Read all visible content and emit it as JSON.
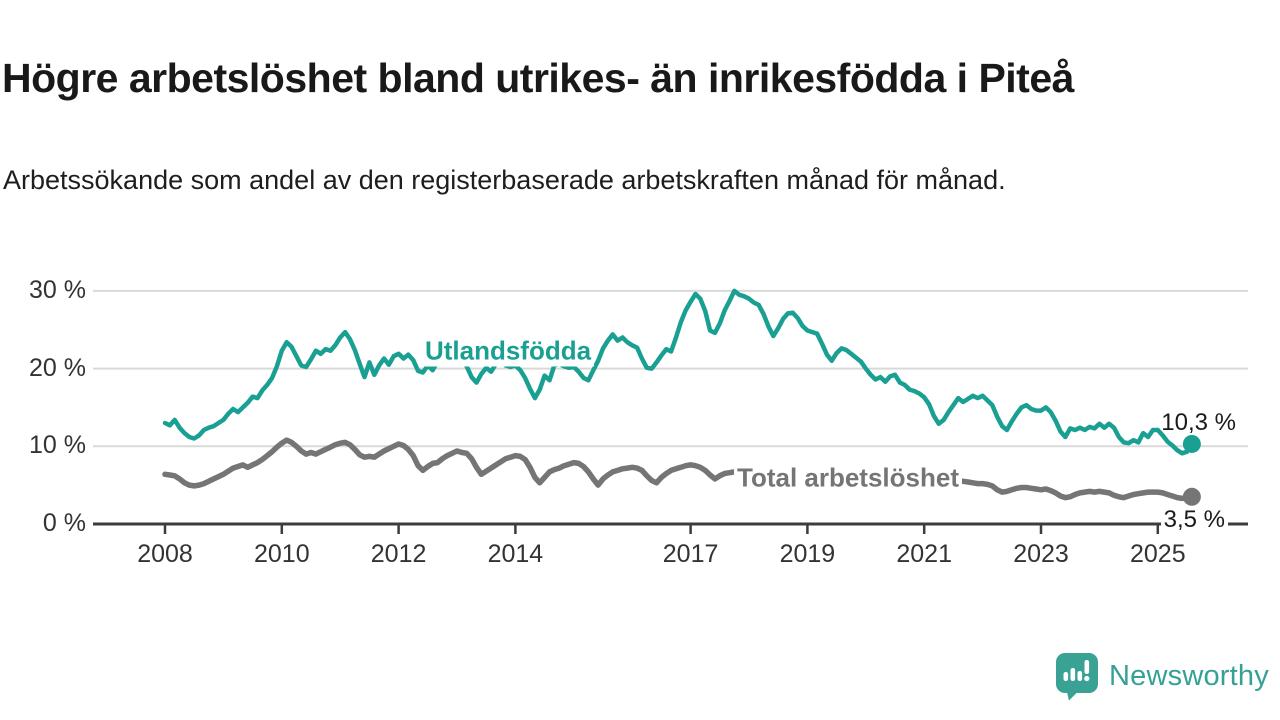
{
  "footer": {
    "brand": "Newsworthy",
    "icon": "newsworthy-speech-bubble-chart-icon"
  },
  "colors": {
    "accent_teal": "#1aa092",
    "series_gray": "#757575",
    "grid": "#d9d9d9",
    "axis": "#3c3c3c",
    "text": "#1a1a1a",
    "logo_teal": "#3aa195"
  },
  "chart_data": {
    "type": "line",
    "title": "Högre arbetslöshet bland utrikes- än inrikesfödda i Piteå",
    "subtitle": "Arbetssökande som andel av den registerbaserade arbetskraften månad för månad.",
    "x_unit": "month",
    "x_start": "2008-01",
    "x_end": "2025-08",
    "xlim": [
      2007.85,
      2026.1
    ],
    "ylim": [
      0,
      31.5
    ],
    "grid": "horizontal",
    "legend_position": "inline-labels",
    "x_ticks": [
      2008,
      2010,
      2012,
      2014,
      2017,
      2019,
      2021,
      2023,
      2025
    ],
    "y_ticks": [
      {
        "value": 0,
        "label": "0 %"
      },
      {
        "value": 10,
        "label": "10 %"
      },
      {
        "value": 20,
        "label": "20 %"
      },
      {
        "value": 30,
        "label": "30 %"
      }
    ],
    "series": [
      {
        "name": "Utlandsfödda",
        "color": "#1aa092",
        "end_label": "10,3 %",
        "end_value": 10.3,
        "values": [
          13.0,
          12.7,
          13.4,
          12.4,
          11.7,
          11.2,
          11.0,
          11.4,
          12.1,
          12.4,
          12.6,
          13.0,
          13.4,
          14.2,
          14.8,
          14.4,
          15.0,
          15.6,
          16.4,
          16.2,
          17.2,
          17.9,
          18.8,
          20.3,
          22.3,
          23.4,
          22.8,
          21.6,
          20.4,
          20.2,
          21.2,
          22.3,
          21.9,
          22.5,
          22.3,
          23.0,
          24.0,
          24.7,
          23.8,
          22.4,
          20.6,
          18.9,
          20.8,
          19.2,
          20.4,
          21.3,
          20.5,
          21.6,
          21.9,
          21.3,
          21.8,
          21.1,
          19.7,
          19.5,
          20.4,
          19.8,
          20.9,
          21.1,
          21.6,
          21.3,
          21.5,
          21.0,
          20.3,
          18.9,
          18.2,
          19.3,
          20.1,
          19.6,
          20.6,
          21.0,
          20.4,
          20.2,
          20.4,
          19.8,
          18.8,
          17.4,
          16.2,
          17.3,
          19.1,
          18.5,
          20.4,
          20.6,
          20.3,
          20.1,
          20.2,
          19.6,
          18.8,
          18.5,
          19.8,
          21.0,
          22.6,
          23.6,
          24.4,
          23.6,
          24.0,
          23.4,
          23.0,
          22.7,
          21.3,
          20.1,
          20.0,
          20.8,
          21.7,
          22.5,
          22.2,
          24.0,
          26.0,
          27.5,
          28.6,
          29.6,
          29.0,
          27.4,
          24.9,
          24.6,
          25.8,
          27.5,
          28.7,
          30.0,
          29.5,
          29.3,
          29.0,
          28.5,
          28.2,
          27.0,
          25.4,
          24.2,
          25.2,
          26.4,
          27.1,
          27.2,
          26.5,
          25.5,
          24.9,
          24.7,
          24.5,
          23.2,
          21.8,
          21.0,
          22.0,
          22.6,
          22.4,
          21.9,
          21.4,
          20.9,
          20.0,
          19.2,
          18.6,
          18.9,
          18.3,
          19.0,
          19.2,
          18.2,
          17.9,
          17.3,
          17.1,
          16.8,
          16.3,
          15.4,
          13.9,
          12.9,
          13.4,
          14.4,
          15.3,
          16.2,
          15.7,
          16.1,
          16.5,
          16.2,
          16.5,
          15.9,
          15.3,
          13.8,
          12.6,
          12.1,
          13.2,
          14.2,
          15.0,
          15.3,
          14.8,
          14.6,
          14.6,
          15.0,
          14.4,
          13.3,
          11.9,
          11.2,
          12.3,
          12.1,
          12.4,
          12.1,
          12.5,
          12.3,
          12.9,
          12.4,
          12.9,
          12.4,
          11.2,
          10.5,
          10.4,
          10.8,
          10.5,
          11.7,
          11.2,
          12.1,
          12.1,
          11.4,
          10.6,
          10.1,
          9.5,
          9.1,
          9.3,
          10.3
        ]
      },
      {
        "name": "Total arbetslöshet",
        "color": "#757575",
        "end_label": "3,5 %",
        "end_value": 3.5,
        "values": [
          6.4,
          6.3,
          6.2,
          5.8,
          5.3,
          5.0,
          4.9,
          5.0,
          5.2,
          5.5,
          5.8,
          6.1,
          6.4,
          6.8,
          7.2,
          7.4,
          7.6,
          7.3,
          7.6,
          7.9,
          8.3,
          8.8,
          9.3,
          9.9,
          10.4,
          10.8,
          10.5,
          10.0,
          9.4,
          9.0,
          9.2,
          9.0,
          9.3,
          9.6,
          9.9,
          10.2,
          10.4,
          10.5,
          10.2,
          9.6,
          8.9,
          8.6,
          8.7,
          8.6,
          9.0,
          9.4,
          9.7,
          10.0,
          10.3,
          10.1,
          9.6,
          8.8,
          7.5,
          6.9,
          7.4,
          7.8,
          7.9,
          8.4,
          8.8,
          9.1,
          9.4,
          9.2,
          9.1,
          8.4,
          7.3,
          6.4,
          6.8,
          7.2,
          7.6,
          8.0,
          8.4,
          8.6,
          8.8,
          8.7,
          8.3,
          7.3,
          6.0,
          5.3,
          6.0,
          6.7,
          7.0,
          7.2,
          7.5,
          7.7,
          7.9,
          7.8,
          7.4,
          6.7,
          5.8,
          5.0,
          5.8,
          6.3,
          6.7,
          6.9,
          7.1,
          7.2,
          7.3,
          7.2,
          6.9,
          6.2,
          5.6,
          5.3,
          6.0,
          6.5,
          6.9,
          7.1,
          7.3,
          7.5,
          7.6,
          7.5,
          7.3,
          6.9,
          6.3,
          5.8,
          6.2,
          6.5,
          6.6,
          6.7,
          6.8,
          6.9,
          7.0,
          6.9,
          6.7,
          6.2,
          5.6,
          5.2,
          5.6,
          5.9,
          6.1,
          6.2,
          6.3,
          6.4,
          6.5,
          6.4,
          6.3,
          5.9,
          5.4,
          5.1,
          5.5,
          5.8,
          5.9,
          6.0,
          6.1,
          6.2,
          6.3,
          6.4,
          6.5,
          6.6,
          6.7,
          6.6,
          6.7,
          6.6,
          6.5,
          6.4,
          6.3,
          6.2,
          6.1,
          6.0,
          5.9,
          5.7,
          5.5,
          5.3,
          5.5,
          5.6,
          5.5,
          5.4,
          5.3,
          5.2,
          5.2,
          5.1,
          4.9,
          4.4,
          4.1,
          4.2,
          4.4,
          4.6,
          4.7,
          4.7,
          4.6,
          4.5,
          4.4,
          4.5,
          4.3,
          4.0,
          3.6,
          3.4,
          3.5,
          3.8,
          4.0,
          4.1,
          4.2,
          4.1,
          4.2,
          4.1,
          4.0,
          3.7,
          3.5,
          3.4,
          3.6,
          3.8,
          3.9,
          4.0,
          4.1,
          4.1,
          4.1,
          4.0,
          3.8,
          3.6,
          3.4,
          3.3,
          3.4,
          3.5
        ]
      }
    ]
  }
}
